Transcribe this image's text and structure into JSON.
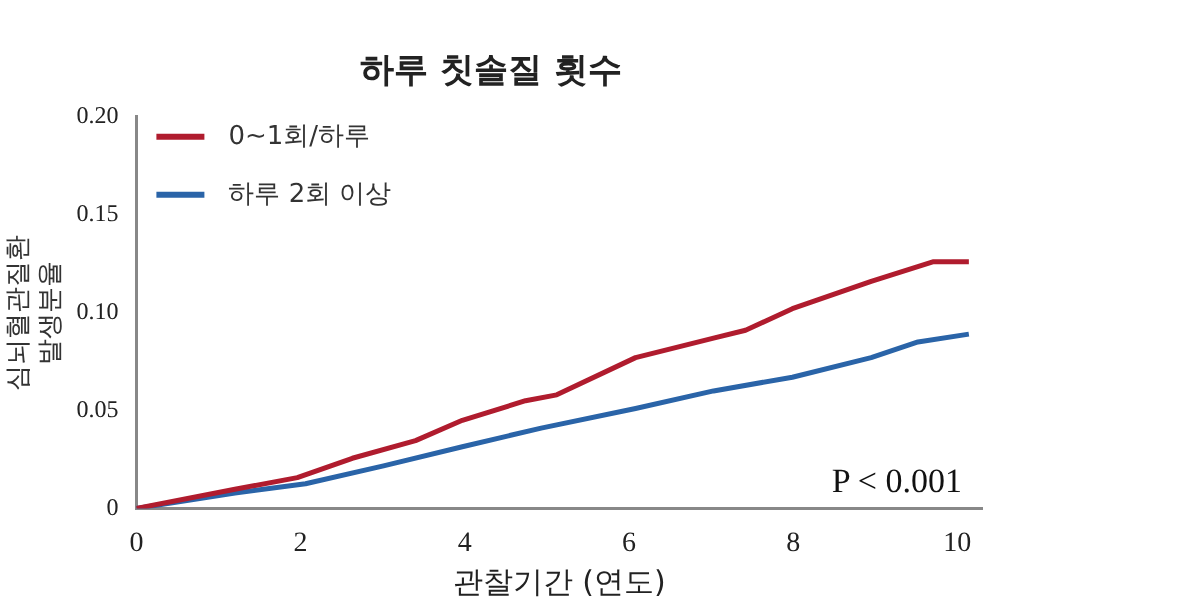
{
  "chart_data": {
    "type": "line",
    "title": "하루 칫솔질 횟수",
    "xlabel": "관찰기간 (연도)",
    "ylabel": "심뇌혈관질환 발생분율",
    "xlim": [
      0,
      10.3
    ],
    "xticks": [
      0,
      2,
      4,
      6,
      8,
      10
    ],
    "ylim": [
      0,
      0.2
    ],
    "yticks": [
      0,
      0.05,
      {
        "value": 0.1,
        "label": "0.10"
      },
      0.15,
      {
        "value": 0.2,
        "label": "0.20"
      }
    ],
    "grid": false,
    "legend": "top left",
    "marker": "none",
    "line_style": "solid",
    "annotations": [
      "P < 0.001"
    ],
    "series": [
      {
        "name": "0~1회/하루",
        "color": "#b01c2e",
        "x": [
          0,
          1.2,
          1.96,
          2.63,
          3.4,
          3.97,
          4.74,
          5.12,
          6.08,
          7.03,
          7.42,
          7.99,
          8.95,
          9.71,
          10.14
        ],
        "values": [
          0,
          0.0098,
          0.0157,
          0.0256,
          0.0346,
          0.045,
          0.055,
          0.058,
          0.077,
          0.087,
          0.091,
          0.102,
          0.116,
          0.126,
          0.126
        ]
      },
      {
        "name": "하루 2회 이상",
        "color": "#2a64a8",
        "x": [
          0,
          1.2,
          2.06,
          3.01,
          3.97,
          4.93,
          6.08,
          7.03,
          7.99,
          8.95,
          9.52,
          10.14
        ],
        "values": [
          0,
          0.0079,
          0.0126,
          0.0217,
          0.0315,
          0.041,
          0.051,
          0.06,
          0.067,
          0.077,
          0.085,
          0.089
        ]
      }
    ]
  }
}
